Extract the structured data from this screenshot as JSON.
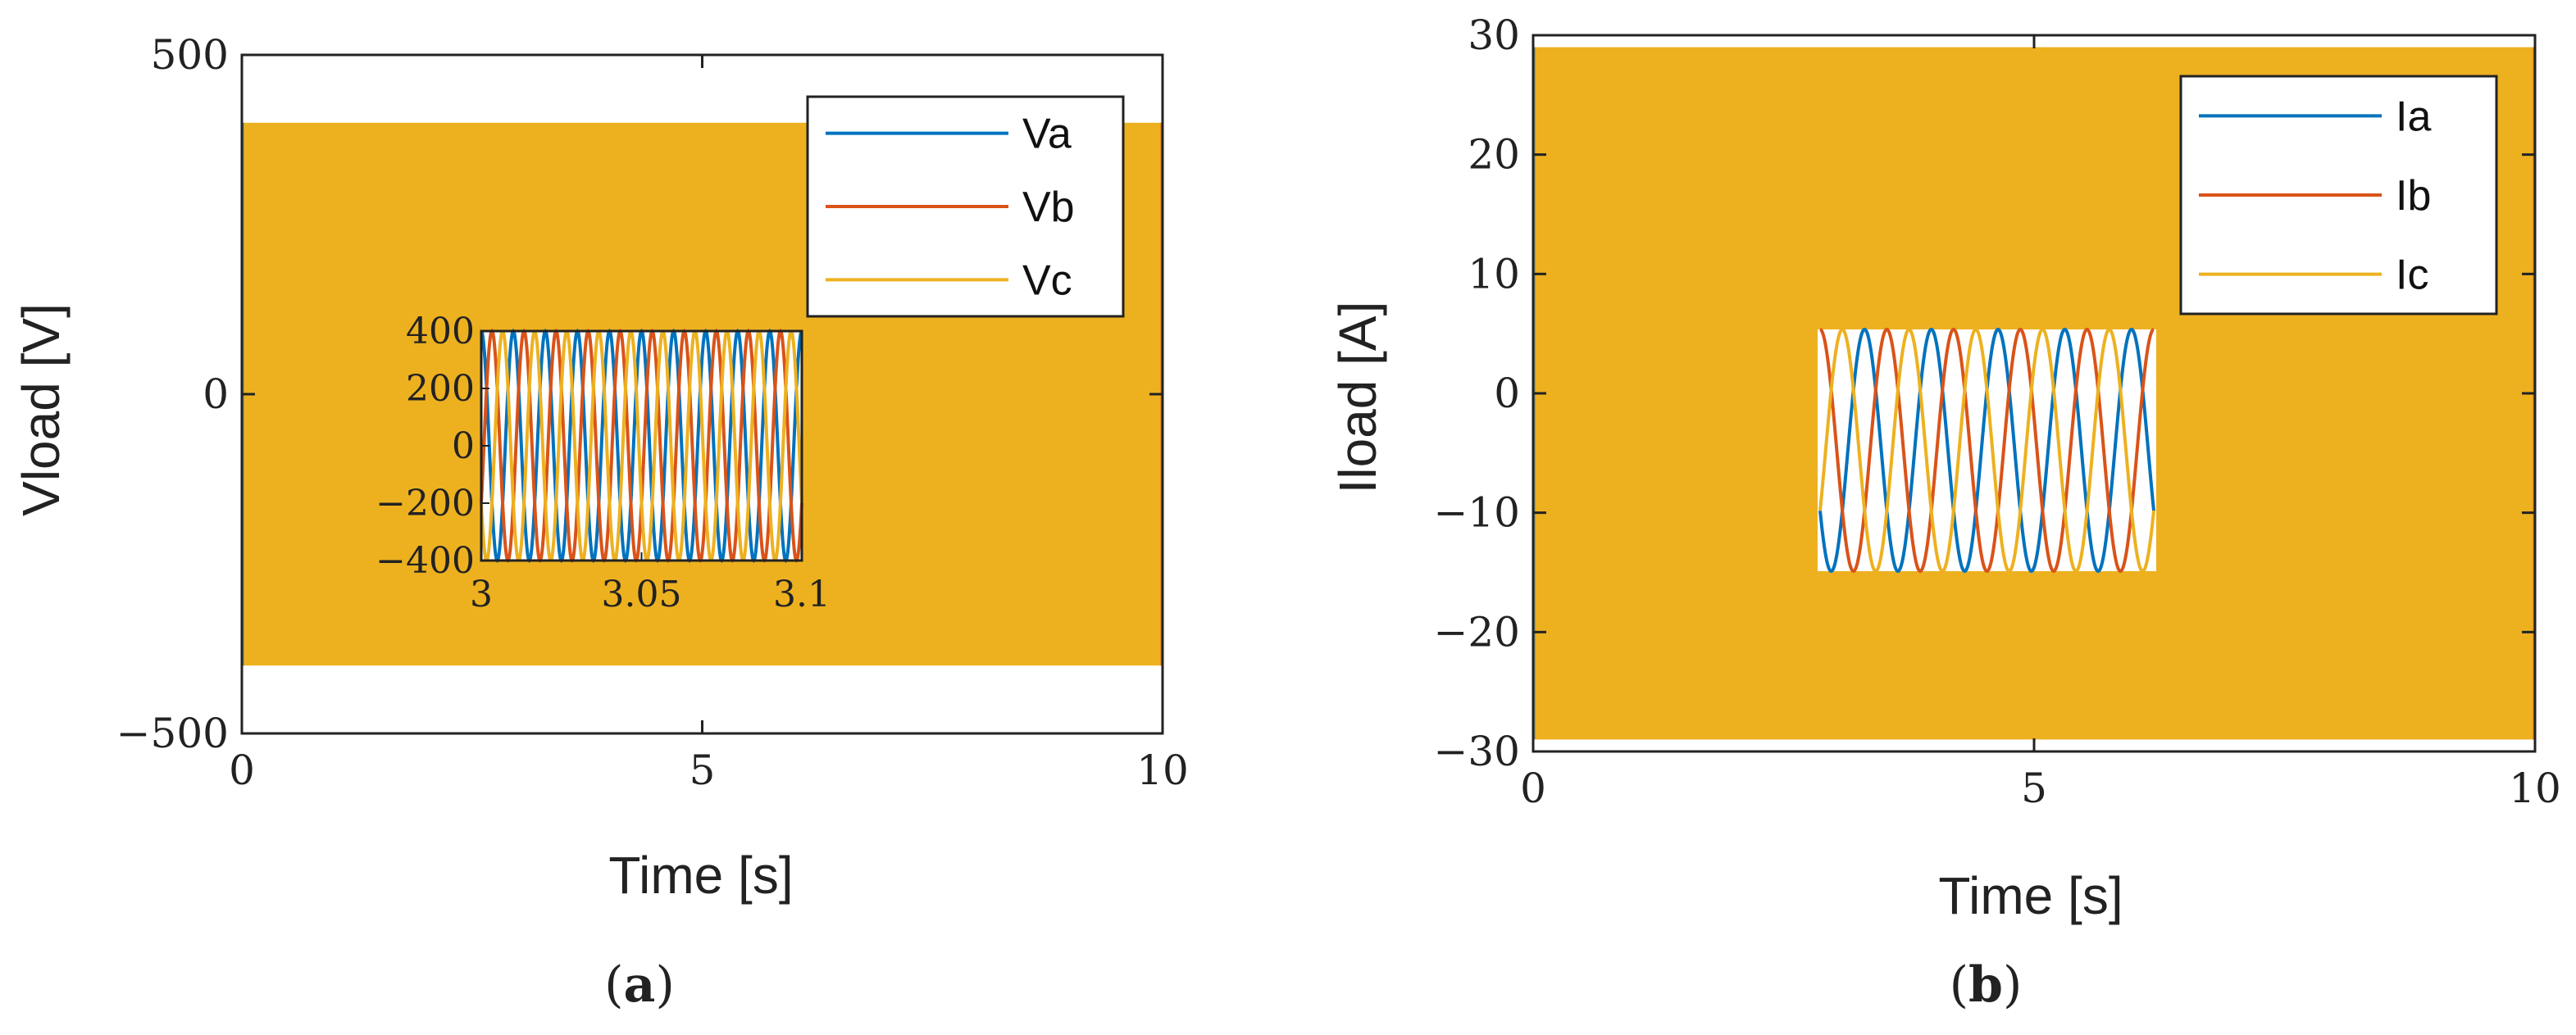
{
  "panels": [
    {
      "label_open": "(",
      "label_letter": "a",
      "label_close": ")"
    },
    {
      "label_open": "(",
      "label_letter": "b",
      "label_close": ")"
    }
  ],
  "chart_data": [
    {
      "type": "line",
      "panel": "a",
      "xlabel": "Time [s]",
      "ylabel": "Vload [V]",
      "xlim": [
        0,
        10
      ],
      "ylim": [
        -500,
        500
      ],
      "xticks": [
        0,
        5,
        10
      ],
      "yticks": [
        -500,
        0,
        500
      ],
      "xtick_labels": [
        "0",
        "5",
        "10"
      ],
      "ytick_labels": [
        "−500",
        "0",
        "500"
      ],
      "grid": false,
      "legend_position": "top-right",
      "fill_amplitude": 400,
      "fill_range": [
        0,
        10
      ],
      "series": [
        {
          "name": "Va",
          "color": "#0072BD",
          "amplitude": 400,
          "frequency_hz": 100,
          "phase_deg": 90
        },
        {
          "name": "Vb",
          "color": "#D95319",
          "amplitude": 400,
          "frequency_hz": 100,
          "phase_deg": -30
        },
        {
          "name": "Vc",
          "color": "#EDB120",
          "amplitude": 400,
          "frequency_hz": 100,
          "phase_deg": 210
        }
      ],
      "inset": {
        "xlim": [
          3,
          3.1
        ],
        "ylim": [
          -400,
          400
        ],
        "xticks": [
          3,
          3.05,
          3.1
        ],
        "yticks": [
          400,
          200,
          0,
          -200,
          -400
        ],
        "xtick_labels": [
          "3",
          "3.05",
          "3.1"
        ],
        "ytick_labels": [
          "400",
          "200",
          "0",
          "−200",
          "−400"
        ]
      }
    },
    {
      "type": "line",
      "panel": "b",
      "xlabel": "Time [s]",
      "ylabel": "Iload [A]",
      "xlim": [
        0,
        10
      ],
      "ylim": [
        -30,
        30
      ],
      "xticks": [
        0,
        5,
        10
      ],
      "yticks": [
        30,
        20,
        10,
        0,
        -10,
        -20,
        -30
      ],
      "xtick_labels": [
        "0",
        "5",
        "10"
      ],
      "ytick_labels": [
        "30",
        "20",
        "10",
        "0",
        "−10",
        "−20",
        "−30"
      ],
      "grid": false,
      "legend_position": "top-right",
      "fill_amplitude": 29,
      "fill_range": [
        0,
        10
      ],
      "series": [
        {
          "name": "Ia",
          "color": "#0072BD",
          "amplitude": 10,
          "offset": -5,
          "cycles": 5,
          "phase_deg": 210
        },
        {
          "name": "Ib",
          "color": "#D95319",
          "amplitude": 10,
          "offset": -5,
          "cycles": 5,
          "phase_deg": 90
        },
        {
          "name": "Ic",
          "color": "#EDB120",
          "amplitude": 10,
          "offset": -5,
          "cycles": 5,
          "phase_deg": -30
        }
      ],
      "inset": {
        "ylim": [
          -15,
          5
        ],
        "cycles": 5
      }
    }
  ]
}
